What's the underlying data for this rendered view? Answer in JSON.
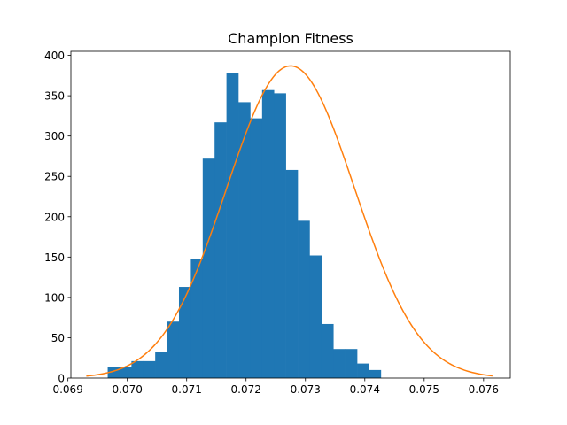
{
  "chart_data": {
    "type": "bar",
    "title": "Champion Fitness",
    "xlabel": "",
    "ylabel": "",
    "xlim": [
      0.06905,
      0.07645
    ],
    "ylim": [
      0,
      405
    ],
    "grid": false,
    "x_ticks": [
      "0.069",
      "0.070",
      "0.071",
      "0.072",
      "0.073",
      "0.074",
      "0.075",
      "0.076"
    ],
    "x_tick_values": [
      0.069,
      0.07,
      0.071,
      0.072,
      0.073,
      0.074,
      0.075,
      0.076
    ],
    "y_ticks": [
      "0",
      "50",
      "100",
      "150",
      "200",
      "250",
      "300",
      "350",
      "400"
    ],
    "y_tick_values": [
      0,
      50,
      100,
      150,
      200,
      250,
      300,
      350,
      400
    ],
    "bin_edges": [
      0.06967,
      0.06987,
      0.07007,
      0.07027,
      0.07047,
      0.07067,
      0.07087,
      0.07107,
      0.07127,
      0.07147,
      0.07167,
      0.07187,
      0.07207,
      0.07227,
      0.07247,
      0.07267,
      0.07287,
      0.07307,
      0.07327,
      0.07347,
      0.07367,
      0.07387,
      0.07407,
      0.07427,
      0.07447,
      0.07467,
      0.07487,
      0.07507,
      0.07527,
      0.07547,
      0.07567,
      0.07587
    ],
    "values": [
      14,
      14,
      21,
      21,
      32,
      70,
      113,
      148,
      272,
      317,
      378,
      342,
      322,
      357,
      353,
      258,
      195,
      152,
      67,
      36,
      36,
      18,
      10,
      0,
      0,
      0,
      0,
      0,
      0,
      0,
      0
    ],
    "series": [
      {
        "name": "",
        "kind": "normal-fit",
        "mean": 0.07275,
        "std": 0.00108,
        "peak": 387,
        "x_range": [
          0.06931,
          0.07615
        ],
        "color": "#ff7f0e"
      }
    ],
    "colors": {
      "bars": "#1f77b4",
      "fit": "#ff7f0e"
    }
  }
}
